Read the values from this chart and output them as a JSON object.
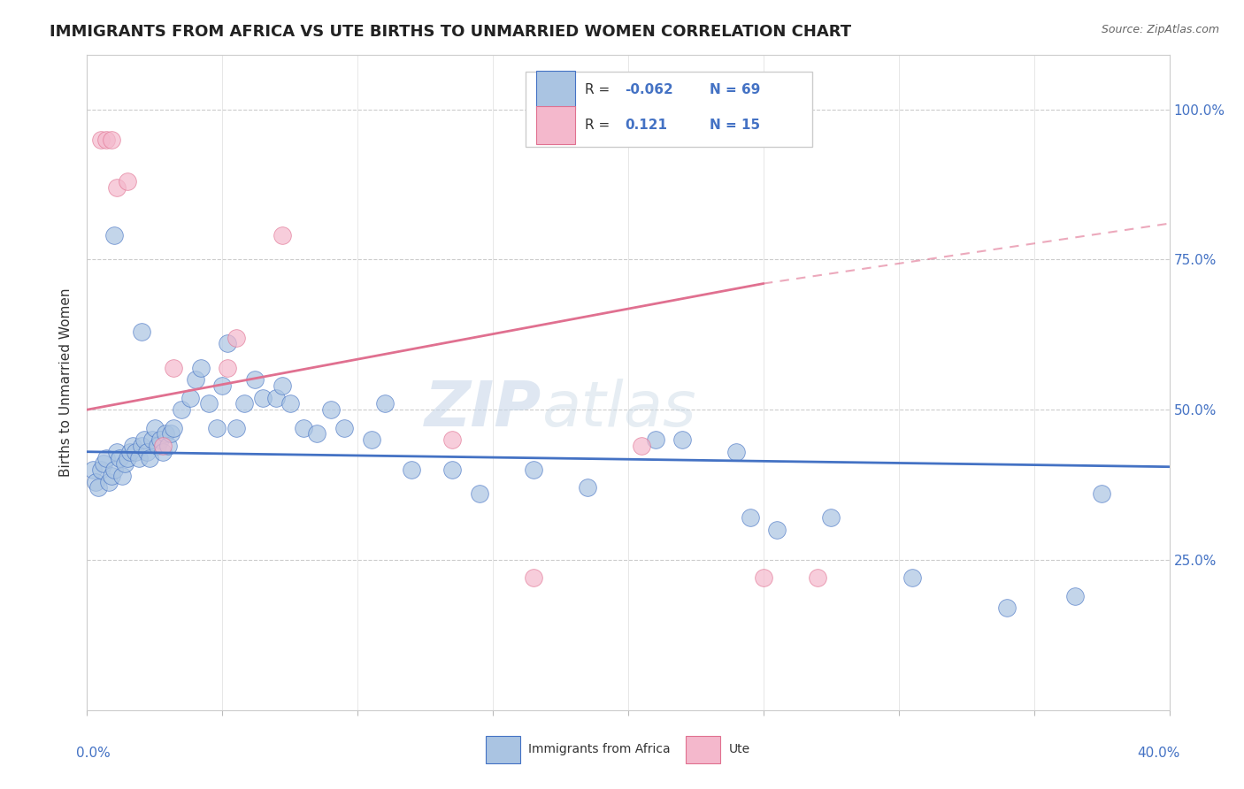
{
  "title": "IMMIGRANTS FROM AFRICA VS UTE BIRTHS TO UNMARRIED WOMEN CORRELATION CHART",
  "source": "Source: ZipAtlas.com",
  "ylabel": "Births to Unmarried Women",
  "legend_blue_label": "Immigrants from Africa",
  "legend_pink_label": "Ute",
  "blue_color": "#aac4e2",
  "pink_color": "#f4b8cc",
  "blue_line_color": "#4472c4",
  "pink_line_color": "#e07090",
  "watermark_zip": "ZIP",
  "watermark_atlas": "atlas",
  "blue_scatter_x": [
    0.2,
    0.3,
    0.4,
    0.5,
    0.6,
    0.7,
    0.8,
    0.9,
    1.0,
    1.1,
    1.2,
    1.3,
    1.4,
    1.5,
    1.6,
    1.7,
    1.8,
    1.9,
    2.0,
    2.1,
    2.2,
    2.3,
    2.4,
    2.5,
    2.6,
    2.7,
    2.8,
    2.9,
    3.0,
    3.1,
    3.2,
    3.5,
    3.8,
    4.0,
    4.2,
    4.5,
    4.8,
    5.0,
    5.5,
    5.8,
    6.2,
    6.5,
    7.0,
    7.2,
    7.5,
    8.0,
    8.5,
    9.0,
    9.5,
    10.5,
    11.0,
    12.0,
    13.5,
    14.5,
    16.5,
    18.5,
    21.0,
    22.0,
    24.0,
    24.5,
    25.5,
    27.5,
    30.5,
    34.0,
    36.5,
    37.5,
    1.0,
    2.0,
    5.2
  ],
  "blue_scatter_y": [
    40,
    38,
    37,
    40,
    41,
    42,
    38,
    39,
    40,
    43,
    42,
    39,
    41,
    42,
    43,
    44,
    43,
    42,
    44,
    45,
    43,
    42,
    45,
    47,
    44,
    45,
    43,
    46,
    44,
    46,
    47,
    50,
    52,
    55,
    57,
    51,
    47,
    54,
    47,
    51,
    55,
    52,
    52,
    54,
    51,
    47,
    46,
    50,
    47,
    45,
    51,
    40,
    40,
    36,
    40,
    37,
    45,
    45,
    43,
    32,
    30,
    32,
    22,
    17,
    19,
    36,
    79,
    63,
    61
  ],
  "pink_scatter_x": [
    0.5,
    0.7,
    0.9,
    1.1,
    1.5,
    2.8,
    3.2,
    5.2,
    5.5,
    7.2,
    13.5,
    16.5,
    20.5,
    25.0,
    27.0
  ],
  "pink_scatter_y": [
    95,
    95,
    95,
    87,
    88,
    44,
    57,
    57,
    62,
    79,
    45,
    22,
    44,
    22,
    22
  ],
  "xmin": 0.0,
  "xmax": 40.0,
  "ymin": 0.0,
  "ymax": 109.0,
  "ytick_vals": [
    25,
    50,
    75,
    100
  ],
  "blue_trend_x0": 0.0,
  "blue_trend_x1": 40.0,
  "blue_trend_y0": 43.0,
  "blue_trend_y1": 40.5,
  "pink_trend_x0": 0.0,
  "pink_trend_x1": 25.0,
  "pink_trend_x1_dash": 40.0,
  "pink_trend_y0": 50.0,
  "pink_trend_y1": 71.0,
  "pink_trend_y1_dash": 81.0,
  "grid_color": "#cccccc",
  "grid_style": "--",
  "background_color": "#ffffff",
  "title_fontsize": 13,
  "source_fontsize": 9,
  "axis_label_fontsize": 11,
  "tick_label_fontsize": 11
}
